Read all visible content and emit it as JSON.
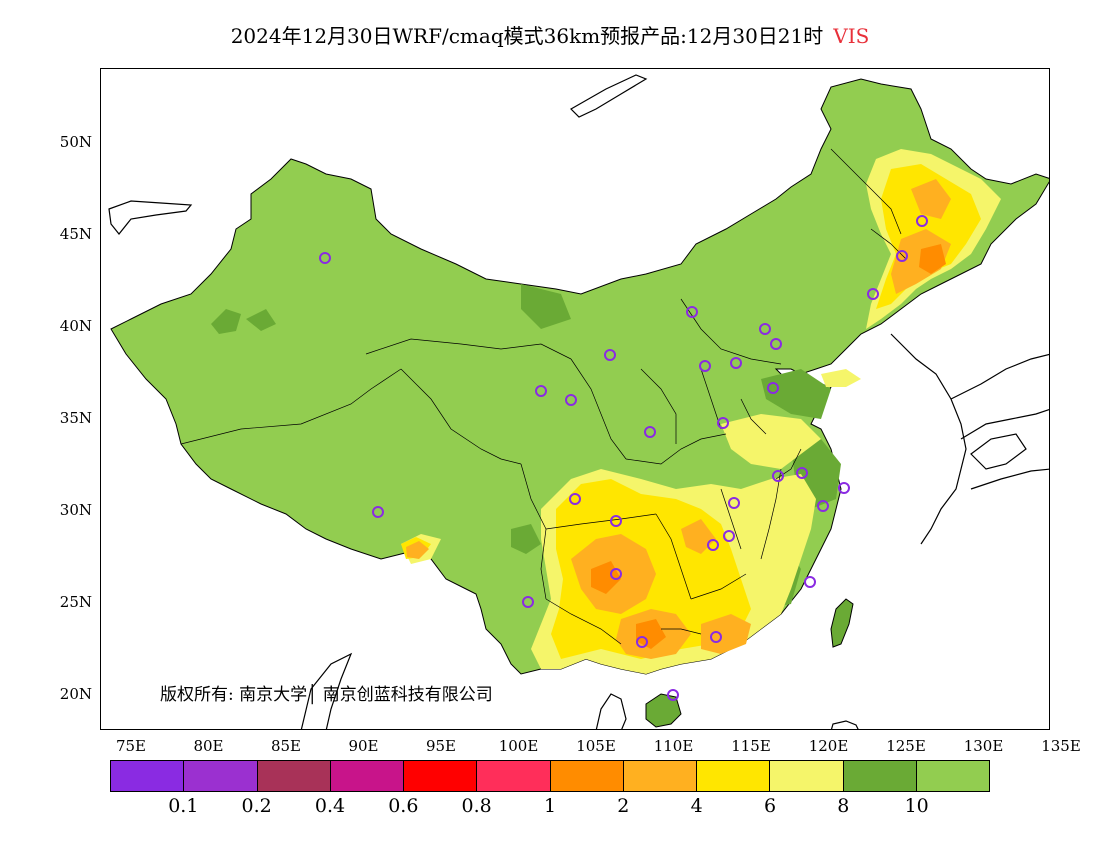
{
  "title": {
    "text": "2024年12月30日WRF/cmaq模式36km预报产品:12月30日21时",
    "variable": "VIS",
    "variable_color": "#e8303a"
  },
  "axes": {
    "y_ticks": [
      "50N",
      "45N",
      "40N",
      "35N",
      "30N",
      "25N",
      "20N"
    ],
    "x_ticks": [
      "75E",
      "80E",
      "85E",
      "90E",
      "95E",
      "100E",
      "105E",
      "110E",
      "115E",
      "120E",
      "125E",
      "130E",
      "135E"
    ]
  },
  "copyright": "版权所有: 南京大学│ 南京创蓝科技有限公司",
  "legend": {
    "colors": [
      "#8a2be2",
      "#9b30d0",
      "#a83258",
      "#c8148a",
      "#ff0000",
      "#ff2e5a",
      "#ff8c00",
      "#ffb020",
      "#ffe600",
      "#f5f56a",
      "#6aaa35",
      "#92cd50"
    ],
    "labels": [
      "0.1",
      "0.2",
      "0.4",
      "0.6",
      "0.8",
      "1",
      "2",
      "4",
      "6",
      "8",
      "10"
    ]
  },
  "palette": {
    "land_base": "#92cd50",
    "dark_green": "#6aaa35",
    "light_yellow": "#f5f56a",
    "yellow": "#ffe600",
    "orange": "#ffb020",
    "dark_orange": "#ff8c00",
    "station_marker": "#8a2be2"
  }
}
